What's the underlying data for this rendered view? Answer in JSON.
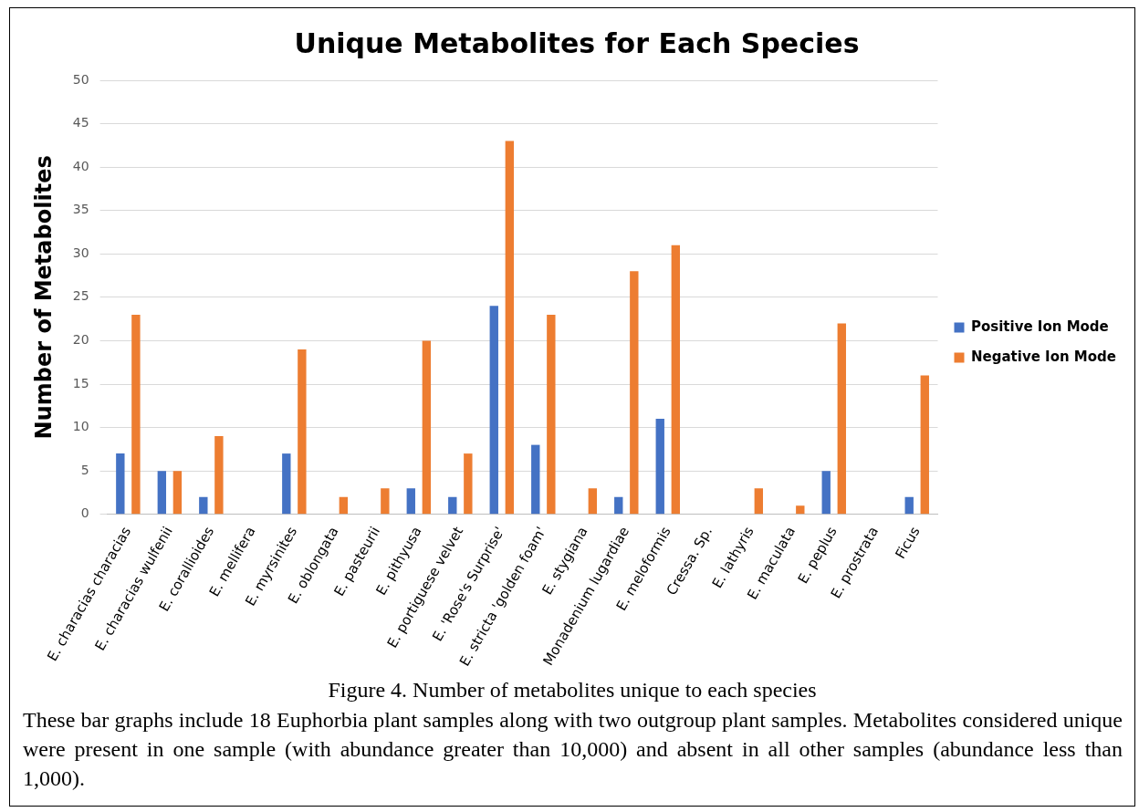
{
  "chart_data": {
    "type": "bar",
    "title": "Unique Metabolites for Each Species",
    "ylabel": "Number of Metabolites",
    "categories": [
      "E. characias characias",
      "E. characias wulfenii",
      "E. corallioides",
      "E. mellifera",
      "E. myrsinites",
      "E. oblongata",
      "E. pasteurii",
      "E. pithyusa",
      "E. portiguese velvet",
      "E. 'Rose's Surprise'",
      "E. stricta 'golden foam'",
      "E. stygiana",
      "Monadenium lugardiae",
      "E. meloformis",
      "Cressa. Sp.",
      "E. lathyris",
      "E. maculata",
      "E. peplus",
      "E. prostrata",
      "Ficus"
    ],
    "series": [
      {
        "name": "Positive Ion Mode",
        "color": "#4472c4",
        "values": [
          7,
          5,
          2,
          0,
          7,
          0,
          0,
          3,
          2,
          24,
          8,
          0,
          2,
          11,
          0,
          0,
          0,
          5,
          0,
          2
        ]
      },
      {
        "name": "Negative Ion Mode",
        "color": "#ed7d31",
        "values": [
          23,
          5,
          9,
          0,
          19,
          2,
          3,
          20,
          7,
          43,
          23,
          3,
          28,
          31,
          0,
          3,
          1,
          22,
          0,
          16
        ]
      }
    ],
    "ylim": [
      0,
      50
    ],
    "yticks": [
      0,
      5,
      10,
      15,
      20,
      25,
      30,
      35,
      40,
      45,
      50
    ],
    "grid": "y",
    "legend": "right",
    "annotations": [
      "Figure 4. Number of metabolites unique to each species",
      "These bar graphs include 18 Euphorbia plant samples along with two outgroup plant samples. Metabolites considered unique were present in one sample (with abundance greater than 10,000) and absent in all other samples (abundance less than 1,000)."
    ]
  }
}
